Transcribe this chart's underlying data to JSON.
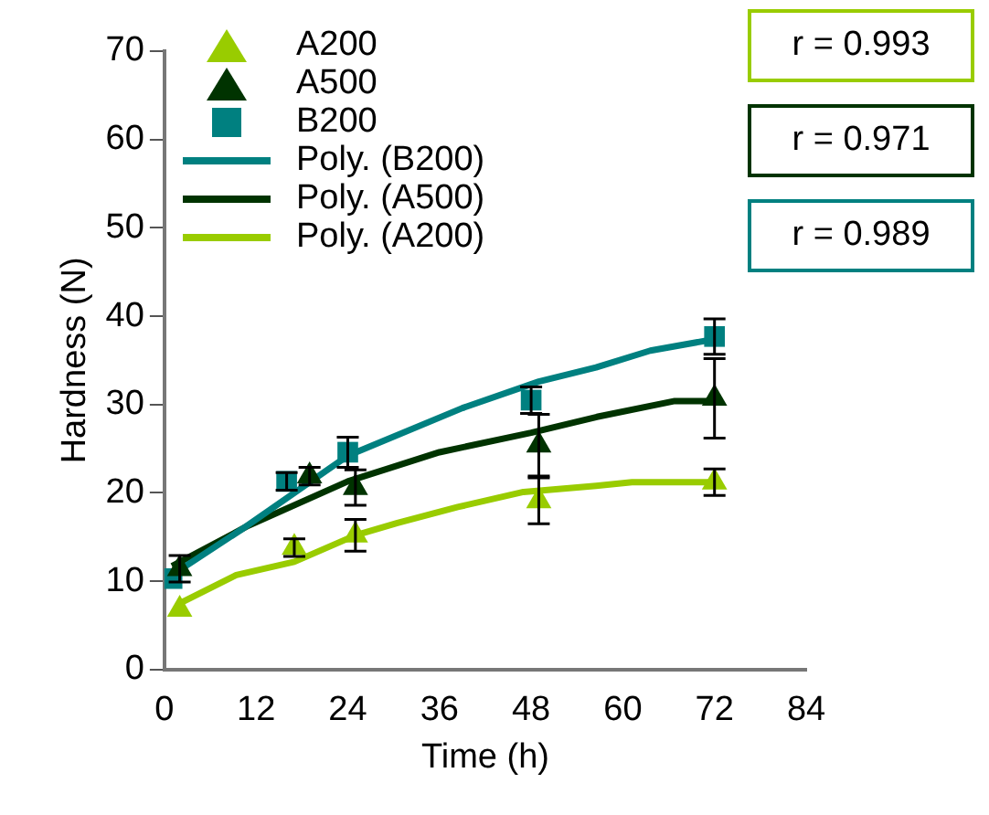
{
  "chart_data": {
    "type": "scatter",
    "xlabel": "Time (h)",
    "ylabel": "Hardness (N)",
    "xlim": [
      0,
      84
    ],
    "xticks": [
      0,
      12,
      24,
      36,
      48,
      60,
      72,
      84
    ],
    "ylim": [
      0,
      70
    ],
    "yticks": [
      0,
      10,
      20,
      30,
      40,
      50,
      60,
      70
    ],
    "grid": false,
    "legend": "top left",
    "annotations": [
      "r = 0.993",
      "r = 0.971",
      "r = 0.989"
    ],
    "series": [
      {
        "name": "A200",
        "type": "scatter",
        "marker": "triangle",
        "color": "#99cc00",
        "x": [
          2,
          17,
          25,
          49,
          72
        ],
        "values": [
          6.8,
          13.8,
          15.2,
          19.1,
          21.2
        ],
        "errors": [
          null,
          1,
          1.8,
          2.6,
          1.5
        ]
      },
      {
        "name": "A500",
        "type": "scatter",
        "marker": "triangle",
        "color": "#003300",
        "x": [
          2,
          19,
          25,
          49,
          72
        ],
        "values": [
          11.4,
          21.9,
          20.6,
          25.4,
          30.7
        ],
        "errors": [
          1.5,
          1,
          2,
          3.5,
          4.5
        ]
      },
      {
        "name": "B200",
        "type": "scatter",
        "marker": "square",
        "color": "#008080",
        "x": [
          1,
          16,
          24,
          48,
          72
        ],
        "values": [
          10.3,
          21.3,
          24.6,
          30.5,
          37.7
        ],
        "errors": [
          null,
          1,
          1.7,
          1.5,
          2
        ]
      },
      {
        "name": "Poly. (B200)",
        "type": "line",
        "marker": "none",
        "color": "#008080",
        "x": [
          1,
          10,
          24,
          39,
          49,
          56.5,
          63.6,
          72
        ],
        "values": [
          10.7,
          15.8,
          24.2,
          29.6,
          32.6,
          34.2,
          36.1,
          37.4
        ]
      },
      {
        "name": "Poly. (A500)",
        "type": "line",
        "marker": "none",
        "color": "#003300",
        "x": [
          1,
          11,
          24,
          36,
          48,
          56.6,
          66.8,
          72
        ],
        "values": [
          11.7,
          16.3,
          21.3,
          24.6,
          26.8,
          28.6,
          30.4,
          30.4
        ]
      },
      {
        "name": "Poly. (A200)",
        "type": "line",
        "marker": "none",
        "color": "#99cc00",
        "x": [
          2,
          9.4,
          17,
          25,
          30.5,
          38.4,
          47,
          56.5,
          61.2,
          72
        ],
        "values": [
          7.5,
          10.7,
          12.2,
          15.2,
          16.6,
          18.4,
          20.1,
          20.8,
          21.2,
          21.2
        ]
      }
    ]
  }
}
